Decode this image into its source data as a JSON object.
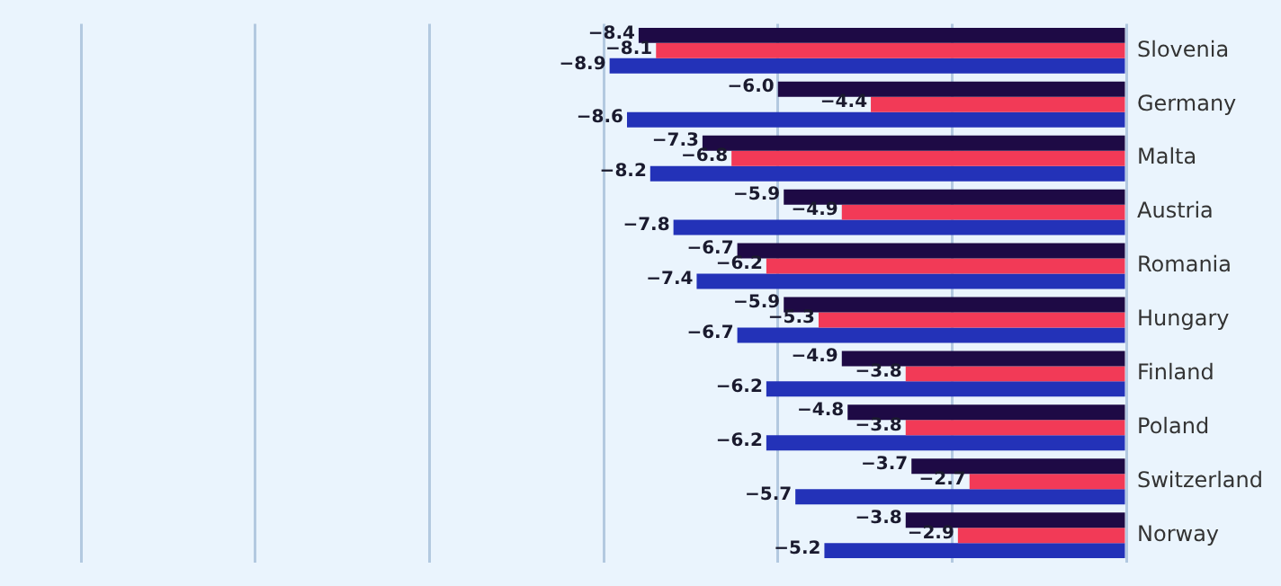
{
  "chart_data": {
    "type": "bar",
    "orientation": "horizontal",
    "categories": [
      "Slovenia",
      "Germany",
      "Malta",
      "Austria",
      "Romania",
      "Hungary",
      "Finland",
      "Poland",
      "Switzerland",
      "Norway"
    ],
    "series": [
      {
        "color": "#1e0a45",
        "values": [
          -8.4,
          -6.0,
          -7.3,
          -5.9,
          -6.7,
          -5.9,
          -4.9,
          -4.8,
          -3.7,
          -3.8
        ],
        "value_labels": [
          "−8.4",
          "−6.0",
          "−7.3",
          "−5.9",
          "−6.7",
          "−5.9",
          "−4.9",
          "−4.8",
          "−3.7",
          "−3.8"
        ]
      },
      {
        "color": "#f23a57",
        "values": [
          -8.1,
          -4.4,
          -6.8,
          -4.9,
          -6.2,
          -5.3,
          -3.8,
          -3.8,
          -2.7,
          -2.9
        ]
      },
      {
        "color": "#2332b8",
        "values": [
          -8.9,
          -8.6,
          -8.2,
          -7.8,
          -7.4,
          -6.7,
          -6.2,
          -6.2,
          -5.7,
          -5.2
        ]
      }
    ],
    "xlim": [
      -19.4,
      0
    ],
    "xticks": [
      -18,
      -15,
      -12,
      -9,
      -6,
      -3,
      0
    ],
    "tick_labels": "y",
    "grid": "x",
    "data_labels": true
  }
}
